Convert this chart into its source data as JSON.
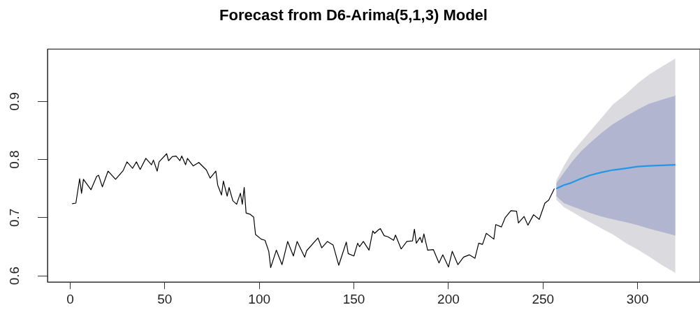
{
  "chart_data": {
    "type": "line",
    "title": "Forecast from D6-Arima(5,1,3) Model",
    "xlim": [
      -12,
      333
    ],
    "xticks": [
      0,
      50,
      100,
      150,
      200,
      250,
      300
    ],
    "ylim": [
      0.589,
      0.99
    ],
    "yticks": [
      0.6,
      0.7,
      0.8,
      0.9
    ],
    "grid": false,
    "legend": false,
    "marker": "none",
    "line_style": "solid",
    "series": [
      {
        "type": "area",
        "color": "#dbdbdf",
        "x": [
          257,
          261,
          265,
          270,
          275,
          281,
          287,
          294,
          300,
          306,
          313,
          320
        ],
        "values": [
          null,
          null,
          null,
          null,
          null,
          null,
          null,
          null,
          null,
          null,
          null,
          null
        ],
        "lower": [
          0.731,
          0.718,
          0.711,
          0.701,
          0.692,
          0.681,
          0.671,
          0.656,
          0.645,
          0.633,
          0.618,
          0.605
        ],
        "upper": [
          0.764,
          0.789,
          0.811,
          0.83,
          0.849,
          0.872,
          0.895,
          0.913,
          0.931,
          0.946,
          0.96,
          0.974
        ]
      },
      {
        "type": "area",
        "color": "#b1b5d0",
        "x": [
          257,
          261,
          265,
          270,
          275,
          281,
          287,
          294,
          300,
          306,
          313,
          320
        ],
        "values": [
          null,
          null,
          null,
          null,
          null,
          null,
          null,
          null,
          null,
          null,
          null,
          null
        ],
        "lower": [
          0.737,
          0.725,
          0.72,
          0.714,
          0.708,
          0.702,
          0.697,
          0.692,
          0.687,
          0.681,
          0.675,
          0.669
        ],
        "upper": [
          0.759,
          0.777,
          0.795,
          0.814,
          0.829,
          0.846,
          0.861,
          0.875,
          0.886,
          0.896,
          0.903,
          0.91
        ]
      },
      {
        "color": "#000000",
        "x": [
          1,
          3,
          5,
          6,
          7,
          11,
          14,
          15,
          17,
          20,
          24,
          28,
          30,
          33,
          35,
          37,
          40,
          43,
          44,
          46,
          47,
          51,
          52,
          54,
          56,
          58,
          59,
          61,
          62,
          65,
          68,
          72,
          74,
          77,
          78,
          80,
          81,
          83,
          84,
          86,
          88,
          90,
          91,
          92,
          93,
          95,
          97,
          98,
          101,
          103,
          105,
          106,
          109,
          112,
          115,
          118,
          120,
          124,
          125,
          131,
          133,
          136,
          139,
          142,
          146,
          147,
          150,
          152,
          153,
          155,
          158,
          160,
          161,
          163,
          164,
          166,
          168,
          171,
          172,
          175,
          178,
          181,
          182,
          183,
          185,
          186,
          187,
          189,
          192,
          195,
          197,
          200,
          202,
          205,
          208,
          211,
          214,
          216,
          218,
          220,
          224,
          225,
          228,
          230,
          233,
          236,
          237,
          240,
          242,
          245,
          248,
          251,
          253,
          256
        ],
        "values": [
          0.724,
          0.725,
          0.767,
          0.742,
          0.766,
          0.748,
          0.771,
          0.773,
          0.753,
          0.78,
          0.766,
          0.781,
          0.796,
          0.785,
          0.796,
          0.783,
          0.802,
          0.791,
          0.799,
          0.78,
          0.796,
          0.81,
          0.798,
          0.805,
          0.806,
          0.798,
          0.806,
          0.791,
          0.802,
          0.789,
          0.795,
          0.782,
          0.768,
          0.78,
          0.756,
          0.739,
          0.763,
          0.737,
          0.752,
          0.729,
          0.723,
          0.742,
          0.723,
          0.752,
          0.708,
          0.706,
          0.701,
          0.671,
          0.663,
          0.661,
          0.642,
          0.614,
          0.644,
          0.619,
          0.659,
          0.634,
          0.659,
          0.632,
          0.643,
          0.665,
          0.648,
          0.659,
          0.653,
          0.618,
          0.658,
          0.638,
          0.634,
          0.656,
          0.65,
          0.659,
          0.644,
          0.677,
          0.673,
          0.679,
          0.681,
          0.669,
          0.667,
          0.661,
          0.67,
          0.646,
          0.659,
          0.66,
          0.68,
          0.656,
          0.666,
          0.657,
          0.672,
          0.644,
          0.645,
          0.622,
          0.636,
          0.615,
          0.642,
          0.619,
          0.632,
          0.636,
          0.63,
          0.656,
          0.654,
          0.673,
          0.663,
          0.688,
          0.684,
          0.7,
          0.712,
          0.711,
          0.691,
          0.702,
          0.687,
          0.705,
          0.697,
          0.725,
          0.73,
          0.75
        ]
      },
      {
        "color": "#2297e6",
        "x": [
          257,
          261,
          265,
          270,
          275,
          281,
          287,
          294,
          300,
          306,
          313,
          320
        ],
        "values": [
          0.75,
          0.756,
          0.76,
          0.767,
          0.773,
          0.778,
          0.782,
          0.785,
          0.788,
          0.789,
          0.79,
          0.791
        ]
      }
    ]
  }
}
